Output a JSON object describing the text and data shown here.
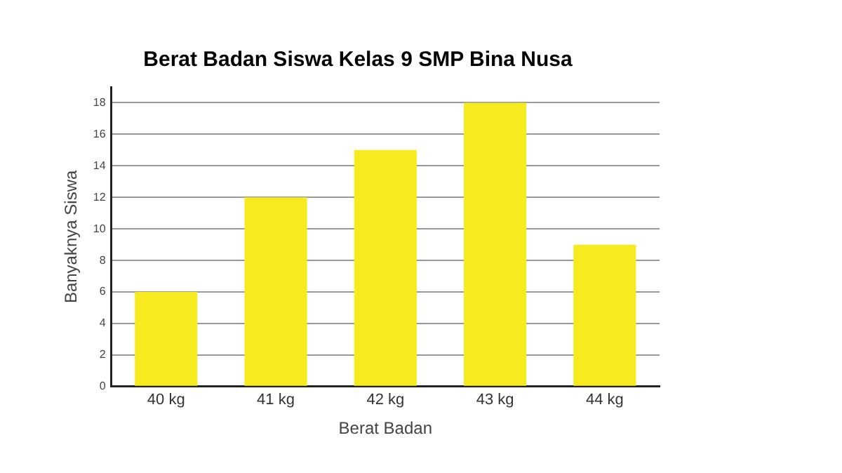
{
  "chart_data": {
    "type": "bar",
    "title": "Berat Badan Siswa Kelas 9 SMP Bina Nusa",
    "xlabel": "Berat Badan",
    "ylabel": "Banyaknya Siswa",
    "categories": [
      "40 kg",
      "41 kg",
      "42 kg",
      "43 kg",
      "44 kg"
    ],
    "values": [
      6,
      12,
      15,
      18,
      9
    ],
    "color": "#f7ea1f",
    "ylim": [
      0,
      19
    ],
    "yticks": [
      0,
      2,
      4,
      6,
      8,
      10,
      12,
      14,
      16,
      18
    ],
    "grid": "y",
    "legend": false
  }
}
